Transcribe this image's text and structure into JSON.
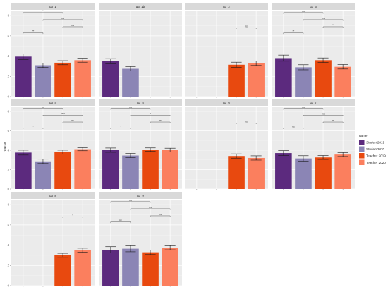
{
  "chart_data": {
    "type": "bar",
    "title": "",
    "xlabel": "",
    "ylabel": "value",
    "ylim": [
      0,
      8.5
    ],
    "yticks": [
      0,
      2,
      4,
      6,
      8
    ],
    "grid": true,
    "legend": {
      "title": "name",
      "position": "right",
      "entries": [
        {
          "label": "Student2019",
          "color": "#5c2a7e"
        },
        {
          "label": "Student2020",
          "color": "#8b85b5"
        },
        {
          "label": "Teacher 2019",
          "color": "#e8490f"
        },
        {
          "label": "Teacher 2020",
          "color": "#fb7f5e"
        }
      ]
    },
    "categories": [
      "Student2019",
      "Student2020",
      "Teacher 2019",
      "Teacher 2020"
    ],
    "panels": [
      {
        "name": "q3_1",
        "values": [
          3.95,
          3.1,
          3.35,
          3.6
        ],
        "errors": [
          0.28,
          0.22,
          0.2,
          0.2
        ],
        "comparisons": [
          {
            "pair": [
              1,
              2
            ],
            "label": "**",
            "y": 6.3
          },
          {
            "pair": [
              3,
              4
            ],
            "label": "ns",
            "y": 6.9
          },
          {
            "pair": [
              2,
              4
            ],
            "label": "ns",
            "y": 7.6
          },
          {
            "pair": [
              1,
              3
            ],
            "label": "*",
            "y": 8.3
          }
        ]
      },
      {
        "name": "q3_1b",
        "values": [
          3.5,
          2.75,
          null,
          null
        ],
        "errors": [
          0.25,
          0.22,
          null,
          null
        ],
        "comparisons": []
      },
      {
        "name": "q3_2",
        "values": [
          null,
          null,
          3.15,
          3.3
        ],
        "errors": [
          null,
          null,
          0.25,
          0.22
        ],
        "comparisons": [
          {
            "pair": [
              3,
              4
            ],
            "label": "ns",
            "y": 6.8
          }
        ]
      },
      {
        "name": "q3_3",
        "values": [
          3.8,
          2.9,
          3.6,
          2.95
        ],
        "errors": [
          0.3,
          0.25,
          0.22,
          0.22
        ],
        "comparisons": [
          {
            "pair": [
              1,
              2
            ],
            "label": "**",
            "y": 6.3
          },
          {
            "pair": [
              3,
              4
            ],
            "label": "**",
            "y": 6.9
          },
          {
            "pair": [
              2,
              4
            ],
            "label": "ns",
            "y": 7.6
          },
          {
            "pair": [
              1,
              3
            ],
            "label": "ns",
            "y": 8.3
          }
        ]
      },
      {
        "name": "q3_4",
        "values": [
          3.75,
          2.85,
          3.8,
          4.1
        ],
        "errors": [
          0.25,
          0.22,
          0.2,
          0.16
        ],
        "comparisons": [
          {
            "pair": [
              1,
              2
            ],
            "label": "**",
            "y": 6.3
          },
          {
            "pair": [
              3,
              4
            ],
            "label": "ns",
            "y": 6.9
          },
          {
            "pair": [
              2,
              4
            ],
            "label": "****",
            "y": 7.6
          },
          {
            "pair": [
              1,
              3
            ],
            "label": "ns",
            "y": 8.3
          }
        ]
      },
      {
        "name": "q3_5",
        "values": [
          4.0,
          3.45,
          4.05,
          4.0
        ],
        "errors": [
          0.22,
          0.22,
          0.18,
          0.2
        ],
        "comparisons": [
          {
            "pair": [
              1,
              2
            ],
            "label": "*",
            "y": 6.3
          },
          {
            "pair": [
              3,
              4
            ],
            "label": "ns",
            "y": 6.9
          },
          {
            "pair": [
              2,
              4
            ],
            "label": "*",
            "y": 7.6
          },
          {
            "pair": [
              1,
              3
            ],
            "label": "ns",
            "y": 8.3
          }
        ]
      },
      {
        "name": "q3_6",
        "values": [
          null,
          null,
          3.4,
          3.2
        ],
        "errors": [
          null,
          null,
          0.22,
          0.22
        ],
        "comparisons": [
          {
            "pair": [
              3,
              4
            ],
            "label": "ns",
            "y": 6.8
          }
        ]
      },
      {
        "name": "q3_7",
        "values": [
          3.7,
          3.15,
          3.25,
          3.55
        ],
        "errors": [
          0.25,
          0.28,
          0.2,
          0.2
        ],
        "comparisons": [
          {
            "pair": [
              1,
              2
            ],
            "label": "ns",
            "y": 6.3
          },
          {
            "pair": [
              3,
              4
            ],
            "label": "ns",
            "y": 6.9
          },
          {
            "pair": [
              2,
              4
            ],
            "label": "ns",
            "y": 7.6
          },
          {
            "pair": [
              1,
              3
            ],
            "label": "ns",
            "y": 8.3
          }
        ]
      },
      {
        "name": "q3_8",
        "values": [
          null,
          null,
          3.0,
          3.5
        ],
        "errors": [
          null,
          null,
          0.2,
          0.2
        ],
        "comparisons": [
          {
            "pair": [
              3,
              4
            ],
            "label": "*",
            "y": 6.8
          }
        ]
      },
      {
        "name": "q3_9",
        "values": [
          3.55,
          3.65,
          3.3,
          3.75
        ],
        "errors": [
          0.3,
          0.3,
          0.22,
          0.2
        ],
        "comparisons": [
          {
            "pair": [
              1,
              2
            ],
            "label": "ns",
            "y": 6.3
          },
          {
            "pair": [
              3,
              4
            ],
            "label": "ns",
            "y": 6.9
          },
          {
            "pair": [
              2,
              4
            ],
            "label": "ns",
            "y": 7.6
          },
          {
            "pair": [
              1,
              3
            ],
            "label": "ns",
            "y": 8.3
          }
        ]
      }
    ]
  }
}
